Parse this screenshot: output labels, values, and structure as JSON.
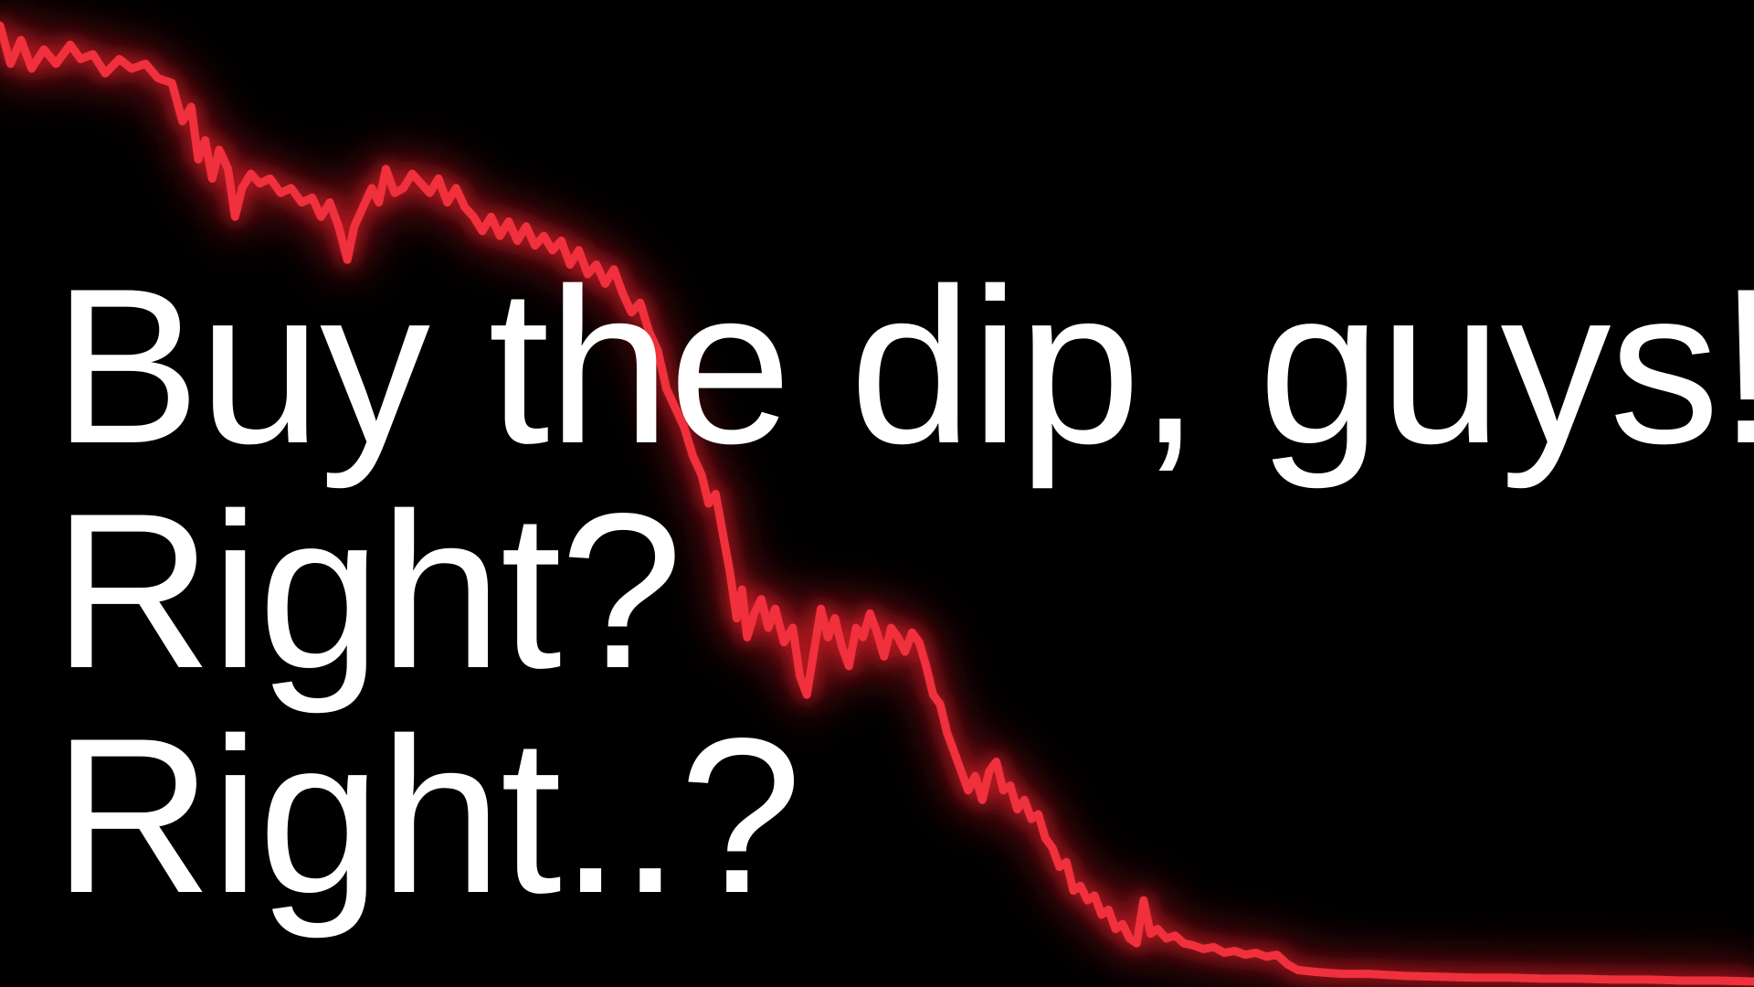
{
  "caption": {
    "line1": "Buy the dip, guys!",
    "line2": "Right?",
    "line3": "Right..?"
  },
  "colors": {
    "background": "#000000",
    "text": "#ffffff",
    "trend_line": "#f0303c",
    "trend_glow": "#d41c28"
  },
  "trend": {
    "direction": "down",
    "points": [
      [
        0,
        1.0
      ],
      [
        0.6,
        0.96
      ],
      [
        1.2,
        0.985
      ],
      [
        1.8,
        0.955
      ],
      [
        2.5,
        0.975
      ],
      [
        3.2,
        0.96
      ],
      [
        4.0,
        0.98
      ],
      [
        4.6,
        0.965
      ],
      [
        5.3,
        0.97
      ],
      [
        6.0,
        0.95
      ],
      [
        6.8,
        0.965
      ],
      [
        7.5,
        0.955
      ],
      [
        8.3,
        0.96
      ],
      [
        9.0,
        0.945
      ],
      [
        9.8,
        0.94
      ],
      [
        10.4,
        0.9
      ],
      [
        10.9,
        0.915
      ],
      [
        11.3,
        0.86
      ],
      [
        11.7,
        0.88
      ],
      [
        12.1,
        0.84
      ],
      [
        12.5,
        0.87
      ],
      [
        13.0,
        0.85
      ],
      [
        13.4,
        0.8
      ],
      [
        13.8,
        0.83
      ],
      [
        14.3,
        0.845
      ],
      [
        14.8,
        0.835
      ],
      [
        15.4,
        0.84
      ],
      [
        16.0,
        0.825
      ],
      [
        16.6,
        0.83
      ],
      [
        17.2,
        0.815
      ],
      [
        17.8,
        0.82
      ],
      [
        18.3,
        0.8
      ],
      [
        18.8,
        0.815
      ],
      [
        19.3,
        0.79
      ],
      [
        19.8,
        0.755
      ],
      [
        20.2,
        0.79
      ],
      [
        20.7,
        0.81
      ],
      [
        21.2,
        0.83
      ],
      [
        21.6,
        0.815
      ],
      [
        22.0,
        0.85
      ],
      [
        22.5,
        0.825
      ],
      [
        23.0,
        0.83
      ],
      [
        23.5,
        0.845
      ],
      [
        24.0,
        0.835
      ],
      [
        24.5,
        0.825
      ],
      [
        25.0,
        0.84
      ],
      [
        25.5,
        0.815
      ],
      [
        26.0,
        0.83
      ],
      [
        26.5,
        0.81
      ],
      [
        27.0,
        0.8
      ],
      [
        27.5,
        0.785
      ],
      [
        28.0,
        0.8
      ],
      [
        28.5,
        0.78
      ],
      [
        29.0,
        0.795
      ],
      [
        29.5,
        0.775
      ],
      [
        30.0,
        0.79
      ],
      [
        30.5,
        0.77
      ],
      [
        31.0,
        0.78
      ],
      [
        31.5,
        0.765
      ],
      [
        32.0,
        0.775
      ],
      [
        32.5,
        0.75
      ],
      [
        33.0,
        0.765
      ],
      [
        33.5,
        0.74
      ],
      [
        34.0,
        0.75
      ],
      [
        34.5,
        0.73
      ],
      [
        35.0,
        0.745
      ],
      [
        35.5,
        0.72
      ],
      [
        36.0,
        0.7
      ],
      [
        36.5,
        0.71
      ],
      [
        37.0,
        0.68
      ],
      [
        37.5,
        0.66
      ],
      [
        38.0,
        0.62
      ],
      [
        38.5,
        0.6
      ],
      [
        39.0,
        0.58
      ],
      [
        39.5,
        0.55
      ],
      [
        40.0,
        0.53
      ],
      [
        40.4,
        0.5
      ],
      [
        40.8,
        0.51
      ],
      [
        41.2,
        0.47
      ],
      [
        41.6,
        0.43
      ],
      [
        42.0,
        0.38
      ],
      [
        42.3,
        0.41
      ],
      [
        42.6,
        0.36
      ],
      [
        43.0,
        0.385
      ],
      [
        43.4,
        0.4
      ],
      [
        43.8,
        0.37
      ],
      [
        44.2,
        0.39
      ],
      [
        44.7,
        0.355
      ],
      [
        45.2,
        0.37
      ],
      [
        45.6,
        0.32
      ],
      [
        46.0,
        0.3
      ],
      [
        46.4,
        0.345
      ],
      [
        46.8,
        0.39
      ],
      [
        47.2,
        0.36
      ],
      [
        47.6,
        0.38
      ],
      [
        48.0,
        0.35
      ],
      [
        48.4,
        0.33
      ],
      [
        48.8,
        0.37
      ],
      [
        49.2,
        0.36
      ],
      [
        49.6,
        0.385
      ],
      [
        50.0,
        0.365
      ],
      [
        50.4,
        0.34
      ],
      [
        50.8,
        0.37
      ],
      [
        51.2,
        0.36
      ],
      [
        51.6,
        0.345
      ],
      [
        52.0,
        0.365
      ],
      [
        52.4,
        0.355
      ],
      [
        52.8,
        0.33
      ],
      [
        53.2,
        0.3
      ],
      [
        53.6,
        0.29
      ],
      [
        54.0,
        0.26
      ],
      [
        54.4,
        0.24
      ],
      [
        54.8,
        0.22
      ],
      [
        55.2,
        0.2
      ],
      [
        55.6,
        0.215
      ],
      [
        56.0,
        0.19
      ],
      [
        56.4,
        0.22
      ],
      [
        56.8,
        0.23
      ],
      [
        57.2,
        0.2
      ],
      [
        57.6,
        0.205
      ],
      [
        58.0,
        0.18
      ],
      [
        58.4,
        0.19
      ],
      [
        58.8,
        0.17
      ],
      [
        59.2,
        0.175
      ],
      [
        59.6,
        0.15
      ],
      [
        60.0,
        0.14
      ],
      [
        60.4,
        0.12
      ],
      [
        60.8,
        0.125
      ],
      [
        61.2,
        0.095
      ],
      [
        61.6,
        0.1
      ],
      [
        62.0,
        0.085
      ],
      [
        62.4,
        0.09
      ],
      [
        62.8,
        0.07
      ],
      [
        63.2,
        0.075
      ],
      [
        63.6,
        0.055
      ],
      [
        64.0,
        0.06
      ],
      [
        64.4,
        0.045
      ],
      [
        64.8,
        0.04
      ],
      [
        65.2,
        0.085
      ],
      [
        65.6,
        0.05
      ],
      [
        66.0,
        0.055
      ],
      [
        66.5,
        0.045
      ],
      [
        67.0,
        0.048
      ],
      [
        67.5,
        0.04
      ],
      [
        68.0,
        0.038
      ],
      [
        68.6,
        0.034
      ],
      [
        69.2,
        0.036
      ],
      [
        69.8,
        0.03
      ],
      [
        70.4,
        0.032
      ],
      [
        71.0,
        0.028
      ],
      [
        71.6,
        0.03
      ],
      [
        72.2,
        0.026
      ],
      [
        72.8,
        0.028
      ],
      [
        73.4,
        0.018
      ],
      [
        74.0,
        0.012
      ],
      [
        75.0,
        0.01
      ],
      [
        76.5,
        0.008
      ],
      [
        78.0,
        0.008
      ],
      [
        80.0,
        0.006
      ],
      [
        82.0,
        0.005
      ],
      [
        84.0,
        0.004
      ],
      [
        86.0,
        0.004
      ],
      [
        88.0,
        0.003
      ],
      [
        90.0,
        0.003
      ],
      [
        92.0,
        0.002
      ],
      [
        94.0,
        0.002
      ],
      [
        96.0,
        0.001
      ],
      [
        98.0,
        0.001
      ],
      [
        100.0,
        0.0
      ]
    ]
  }
}
